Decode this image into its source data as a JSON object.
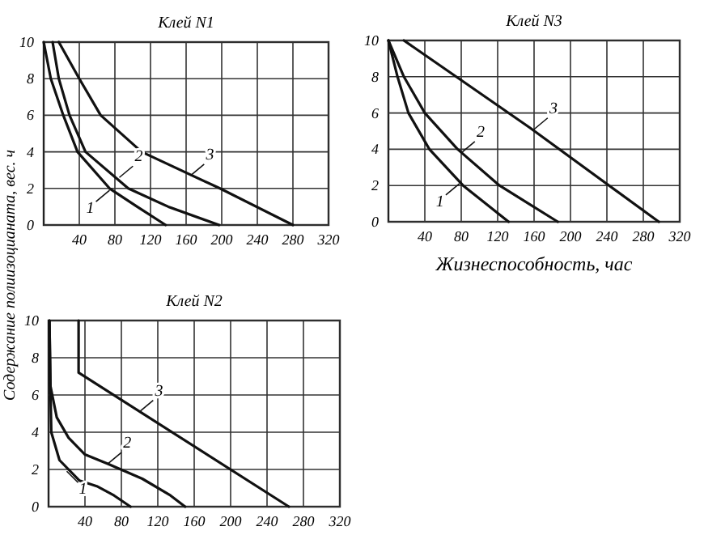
{
  "chart_data": [
    {
      "type": "line",
      "title": "Клей N1",
      "ylabel": "Содержание полиизоцианата, вес. ч",
      "xlim": [
        0,
        320
      ],
      "ylim": [
        0,
        10
      ],
      "xticks": [
        40,
        80,
        120,
        160,
        200,
        240,
        280,
        320
      ],
      "yticks": [
        0,
        2,
        4,
        6,
        8,
        10
      ],
      "grid": true,
      "marker": "none",
      "line_style": "solid",
      "series": [
        {
          "color": "#111111",
          "x": [
            0,
            8,
            22,
            38,
            74,
            105,
            137
          ],
          "values": [
            10,
            8,
            6,
            4,
            2,
            1,
            0
          ]
        },
        {
          "color": "#111111",
          "x": [
            10,
            17,
            29,
            47,
            95,
            140,
            197
          ],
          "values": [
            10,
            8,
            6,
            4,
            2,
            1,
            0
          ]
        },
        {
          "color": "#111111",
          "x": [
            17,
            40,
            64,
            110,
            198,
            280
          ],
          "values": [
            10,
            8,
            6,
            4,
            2,
            0
          ]
        }
      ],
      "annotations": [
        {
          "text": "1",
          "x": 74,
          "y": 1.9
        },
        {
          "text": "2",
          "x": 85,
          "y": 2.6
        },
        {
          "text": "3",
          "x": 165,
          "y": 2.7
        }
      ]
    },
    {
      "type": "line",
      "title": "Клей N3",
      "xlabel": "Жизнеспособность, час",
      "xlim": [
        0,
        320
      ],
      "ylim": [
        0,
        10
      ],
      "xticks": [
        40,
        80,
        120,
        160,
        200,
        240,
        280,
        320
      ],
      "yticks": [
        0,
        2,
        4,
        6,
        8,
        10
      ],
      "grid": true,
      "marker": "none",
      "line_style": "solid",
      "series": [
        {
          "color": "#111111",
          "x": [
            0,
            10,
            22,
            45,
            82,
            132
          ],
          "values": [
            10,
            8,
            6,
            4,
            2,
            0
          ]
        },
        {
          "color": "#111111",
          "x": [
            0,
            17,
            40,
            76,
            122,
            186
          ],
          "values": [
            10,
            8,
            6,
            4,
            2,
            0
          ]
        },
        {
          "color": "#111111",
          "x": [
            17,
            155,
            297
          ],
          "values": [
            10,
            5.2,
            0
          ]
        }
      ],
      "annotations": [
        {
          "text": "1",
          "x": 78,
          "y": 2.1
        },
        {
          "text": "2",
          "x": 80,
          "y": 3.8
        },
        {
          "text": "3",
          "x": 160,
          "y": 5.1
        }
      ]
    },
    {
      "type": "line",
      "title": "Клей N2",
      "xlim": [
        0,
        320
      ],
      "ylim": [
        0,
        10
      ],
      "xticks": [
        40,
        80,
        120,
        160,
        200,
        240,
        280,
        320
      ],
      "yticks": [
        0,
        2,
        4,
        6,
        8,
        10
      ],
      "grid": true,
      "marker": "none",
      "line_style": "solid",
      "series": [
        {
          "color": "#111111",
          "x": [
            1,
            2,
            3,
            12,
            34,
            53,
            72,
            90
          ],
          "values": [
            10,
            6.5,
            4,
            2.5,
            1.4,
            1.1,
            0.6,
            0
          ]
        },
        {
          "color": "#111111",
          "x": [
            1,
            2,
            9,
            22,
            40,
            65,
            103,
            134,
            150
          ],
          "values": [
            10,
            6.5,
            4.8,
            3.7,
            2.8,
            2.3,
            1.5,
            0.6,
            0
          ]
        },
        {
          "color": "#111111",
          "x": [
            33,
            33,
            264
          ],
          "values": [
            10,
            7.2,
            0
          ]
        }
      ],
      "annotations": [
        {
          "text": "1",
          "x": 20,
          "y": 1.9
        },
        {
          "text": "2",
          "x": 65,
          "y": 2.3
        },
        {
          "text": "3",
          "x": 100,
          "y": 5.1
        }
      ]
    }
  ]
}
